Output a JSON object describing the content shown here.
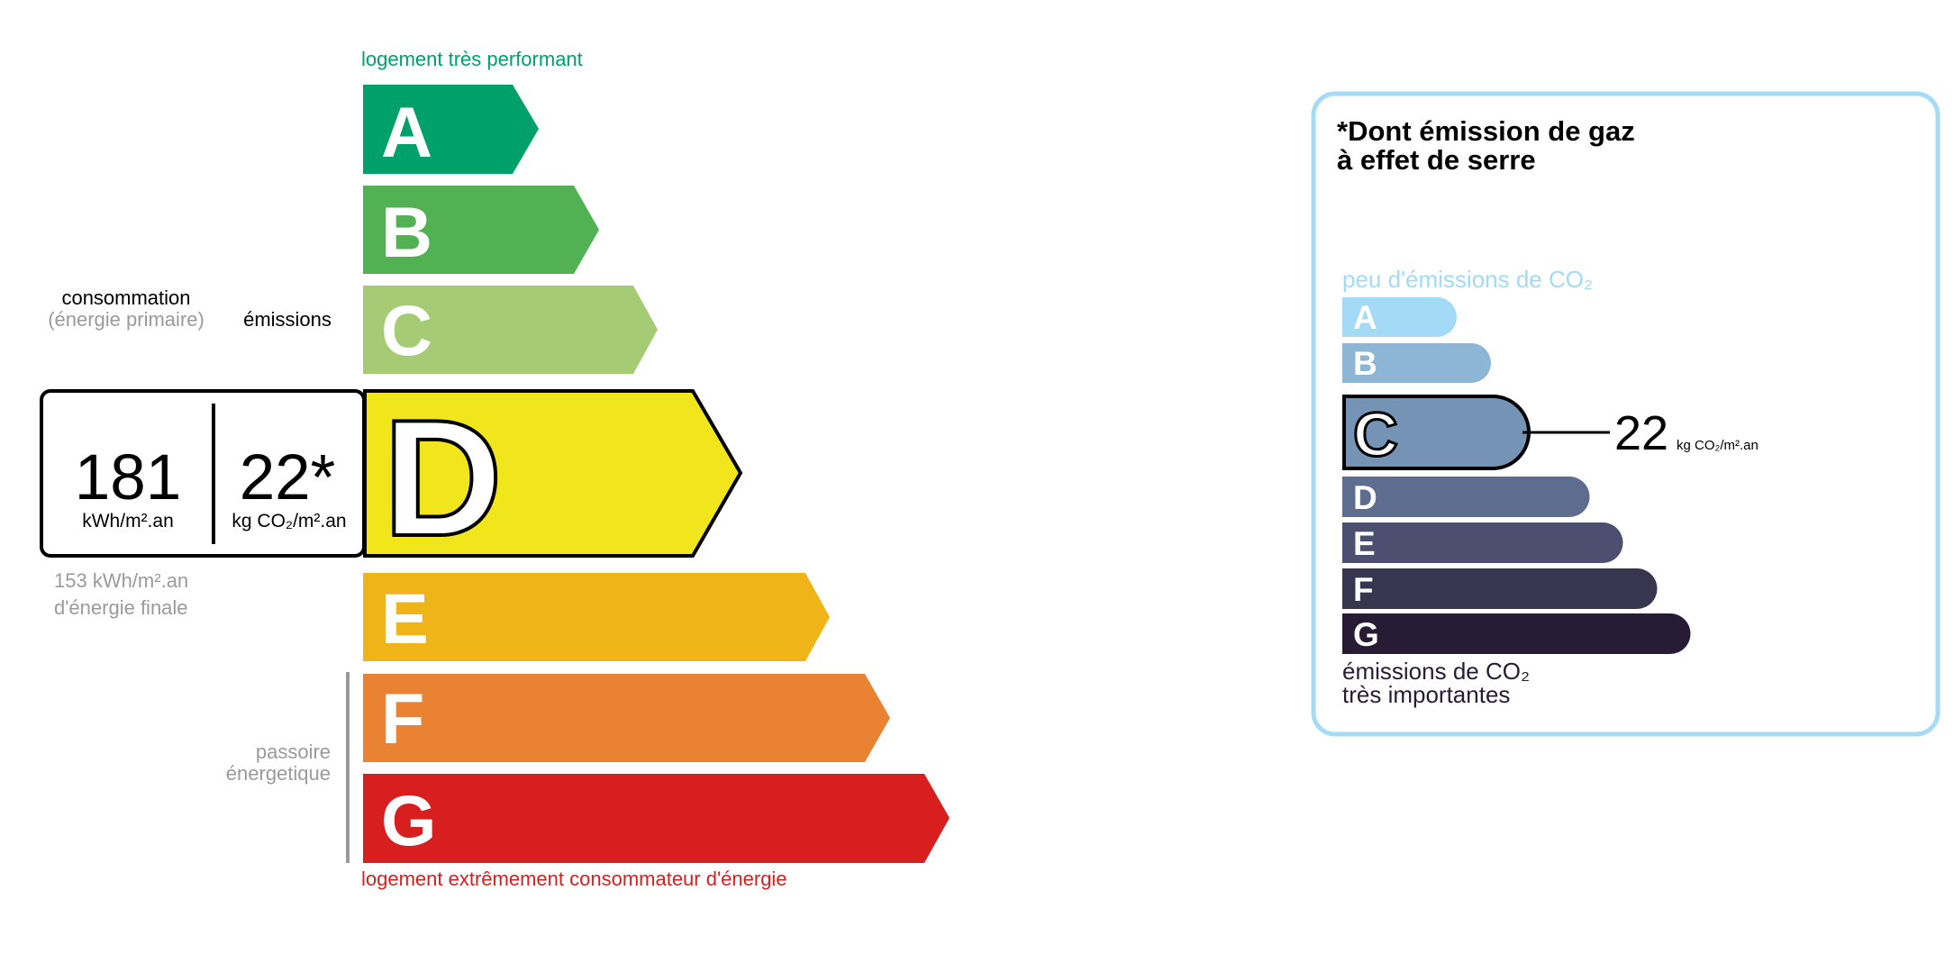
{
  "energy": {
    "top_label": "logement très performant",
    "bottom_label": "logement extrêmement consommateur d'énergie",
    "classes": [
      {
        "letter": "A",
        "color": "#00a06a"
      },
      {
        "letter": "B",
        "color": "#52b153"
      },
      {
        "letter": "C",
        "color": "#a5cc74"
      },
      {
        "letter": "D",
        "color": "#f0e61b"
      },
      {
        "letter": "E",
        "color": "#efb418"
      },
      {
        "letter": "F",
        "color": "#ea8233"
      },
      {
        "letter": "G",
        "color": "#d71f20"
      }
    ],
    "current_class": "D",
    "consumption_label": "consommation",
    "consumption_sublabel": "(énergie primaire)",
    "emissions_label": "émissions",
    "consumption_value": "181",
    "consumption_unit": "kWh/m².an",
    "emissions_value": "22*",
    "emissions_unit": "kg CO₂/m².an",
    "final_energy_value": "153 kWh/m².an",
    "final_energy_label": "d'énergie finale",
    "passoire_line1": "passoire",
    "passoire_line2": "énergetique"
  },
  "ghg": {
    "title_line1": "*Dont émission de gaz",
    "title_line2": "à effet de serre",
    "top_label": "peu d'émissions de CO₂",
    "bottom_line1": "émissions de CO₂",
    "bottom_line2": "très importantes",
    "classes": [
      {
        "letter": "A",
        "color": "#a3daf5"
      },
      {
        "letter": "B",
        "color": "#8db5d5"
      },
      {
        "letter": "C",
        "color": "#7594b5"
      },
      {
        "letter": "D",
        "color": "#5e6d8f"
      },
      {
        "letter": "E",
        "color": "#4c4f6f"
      },
      {
        "letter": "F",
        "color": "#383551"
      },
      {
        "letter": "G",
        "color": "#281b35"
      }
    ],
    "current_class": "C",
    "value": "22",
    "unit": "kg CO₂/m².an",
    "border_color": "#a6dbf5"
  }
}
